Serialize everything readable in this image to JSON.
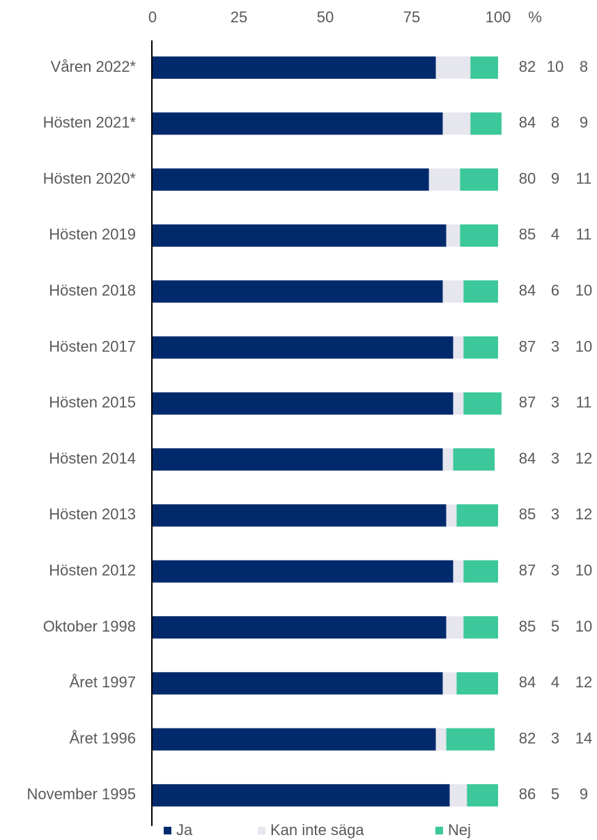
{
  "chart_data": {
    "type": "stacked_barh",
    "xlabel": "%",
    "categories": [
      "Våren 2022*",
      "Hösten 2021*",
      "Hösten 2020*",
      "Hösten 2019",
      "Hösten 2018",
      "Hösten 2017",
      "Hösten 2015",
      "Hösten 2014",
      "Hösten 2013",
      "Hösten 2012",
      "Oktober 1998",
      "Året 1997",
      "Året 1996",
      "November 1995"
    ],
    "series": [
      {
        "name": "Ja",
        "color": "#002a6c",
        "values": [
          82,
          84,
          80,
          85,
          84,
          87,
          87,
          84,
          85,
          87,
          85,
          84,
          82,
          86
        ]
      },
      {
        "name": "Kan inte säga",
        "color": "#e6e6ee",
        "values": [
          10,
          8,
          9,
          4,
          6,
          3,
          3,
          3,
          3,
          3,
          5,
          4,
          3,
          5
        ]
      },
      {
        "name": "Nej",
        "color": "#3cc89a",
        "values": [
          8,
          9,
          11,
          11,
          10,
          10,
          11,
          12,
          12,
          10,
          10,
          12,
          14,
          9
        ]
      }
    ],
    "xlim": [
      0,
      100
    ],
    "xticks": [
      0,
      25,
      50,
      75,
      100
    ],
    "grid": false,
    "legend": "bottom"
  }
}
